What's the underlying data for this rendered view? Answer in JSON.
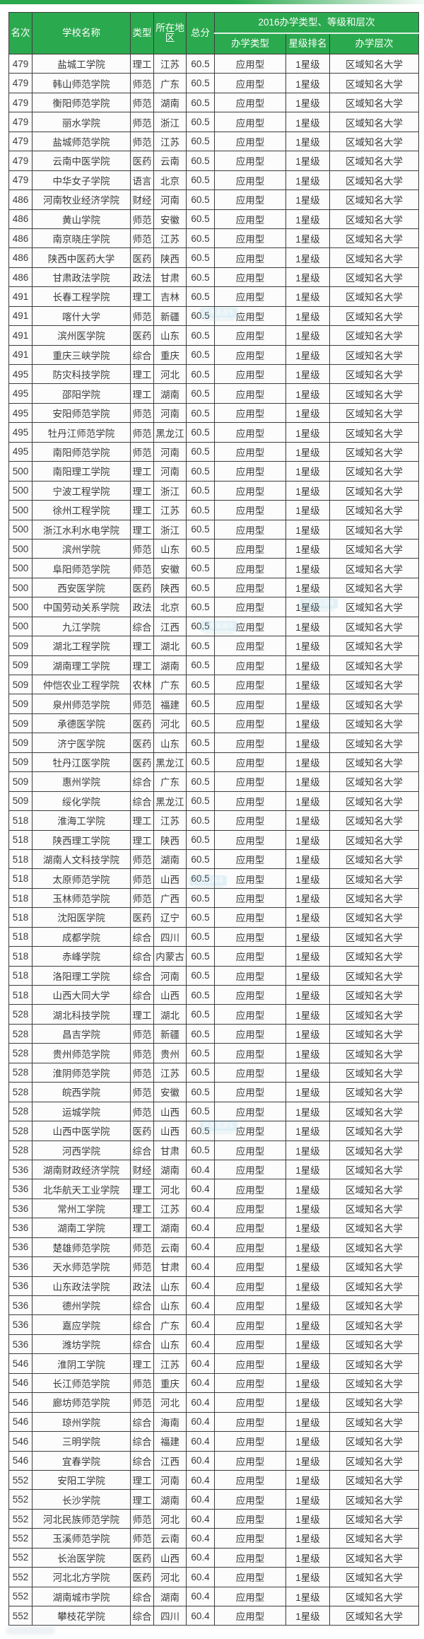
{
  "chart_data": {
    "type": "table",
    "columns": [
      "名次",
      "学校名称",
      "类型",
      "所在地区",
      "总分"
    ],
    "group_label": "2016办学类型、等级和层次",
    "sub_columns": [
      "办学类型",
      "星级排名",
      "办学层次"
    ],
    "rows": [
      [
        "479",
        "盐城工学院",
        "理工",
        "江苏",
        "60.5",
        "应用型",
        "1星级",
        "区域知名大学"
      ],
      [
        "479",
        "韩山师范学院",
        "师范",
        "广东",
        "60.5",
        "应用型",
        "1星级",
        "区域知名大学"
      ],
      [
        "479",
        "衡阳师范学院",
        "师范",
        "湖南",
        "60.5",
        "应用型",
        "1星级",
        "区域知名大学"
      ],
      [
        "479",
        "丽水学院",
        "师范",
        "浙江",
        "60.5",
        "应用型",
        "1星级",
        "区域知名大学"
      ],
      [
        "479",
        "盐城师范学院",
        "师范",
        "江苏",
        "60.5",
        "应用型",
        "1星级",
        "区域知名大学"
      ],
      [
        "479",
        "云南中医学院",
        "医药",
        "云南",
        "60.5",
        "应用型",
        "1星级",
        "区域知名大学"
      ],
      [
        "479",
        "中华女子学院",
        "语言",
        "北京",
        "60.5",
        "应用型",
        "1星级",
        "区域知名大学"
      ],
      [
        "486",
        "河南牧业经济学院",
        "财经",
        "河南",
        "60.5",
        "应用型",
        "1星级",
        "区域知名大学"
      ],
      [
        "486",
        "黄山学院",
        "师范",
        "安徽",
        "60.5",
        "应用型",
        "1星级",
        "区域知名大学"
      ],
      [
        "486",
        "南京晓庄学院",
        "师范",
        "江苏",
        "60.5",
        "应用型",
        "1星级",
        "区域知名大学"
      ],
      [
        "486",
        "陕西中医药大学",
        "医药",
        "陕西",
        "60.5",
        "应用型",
        "1星级",
        "区域知名大学"
      ],
      [
        "486",
        "甘肃政法学院",
        "政法",
        "甘肃",
        "60.5",
        "应用型",
        "1星级",
        "区域知名大学"
      ],
      [
        "491",
        "长春工程学院",
        "理工",
        "吉林",
        "60.5",
        "应用型",
        "1星级",
        "区域知名大学"
      ],
      [
        "491",
        "喀什大学",
        "师范",
        "新疆",
        "60.5",
        "应用型",
        "1星级",
        "区域知名大学"
      ],
      [
        "491",
        "滨州医学院",
        "医药",
        "山东",
        "60.5",
        "应用型",
        "1星级",
        "区域知名大学"
      ],
      [
        "491",
        "重庆三峡学院",
        "综合",
        "重庆",
        "60.5",
        "应用型",
        "1星级",
        "区域知名大学"
      ],
      [
        "495",
        "防灾科技学院",
        "理工",
        "河北",
        "60.5",
        "应用型",
        "1星级",
        "区域知名大学"
      ],
      [
        "495",
        "邵阳学院",
        "理工",
        "湖南",
        "60.5",
        "应用型",
        "1星级",
        "区域知名大学"
      ],
      [
        "495",
        "安阳师范学院",
        "师范",
        "河南",
        "60.5",
        "应用型",
        "1星级",
        "区域知名大学"
      ],
      [
        "495",
        "牡丹江师范学院",
        "师范",
        "黑龙江",
        "60.5",
        "应用型",
        "1星级",
        "区域知名大学"
      ],
      [
        "495",
        "南阳师范学院",
        "师范",
        "河南",
        "60.5",
        "应用型",
        "1星级",
        "区域知名大学"
      ],
      [
        "500",
        "南阳理工学院",
        "理工",
        "河南",
        "60.5",
        "应用型",
        "1星级",
        "区域知名大学"
      ],
      [
        "500",
        "宁波工程学院",
        "理工",
        "浙江",
        "60.5",
        "应用型",
        "1星级",
        "区域知名大学"
      ],
      [
        "500",
        "徐州工程学院",
        "理工",
        "江苏",
        "60.5",
        "应用型",
        "1星级",
        "区域知名大学"
      ],
      [
        "500",
        "浙江水利水电学院",
        "理工",
        "浙江",
        "60.5",
        "应用型",
        "1星级",
        "区域知名大学"
      ],
      [
        "500",
        "滨州学院",
        "师范",
        "山东",
        "60.5",
        "应用型",
        "1星级",
        "区域知名大学"
      ],
      [
        "500",
        "阜阳师范学院",
        "师范",
        "安徽",
        "60.5",
        "应用型",
        "1星级",
        "区域知名大学"
      ],
      [
        "500",
        "西安医学院",
        "医药",
        "陕西",
        "60.5",
        "应用型",
        "1星级",
        "区域知名大学"
      ],
      [
        "500",
        "中国劳动关系学院",
        "政法",
        "北京",
        "60.5",
        "应用型",
        "1星级",
        "区域知名大学"
      ],
      [
        "500",
        "九江学院",
        "综合",
        "江西",
        "60.5",
        "应用型",
        "1星级",
        "区域知名大学"
      ],
      [
        "509",
        "湖北工程学院",
        "理工",
        "湖北",
        "60.5",
        "应用型",
        "1星级",
        "区域知名大学"
      ],
      [
        "509",
        "湖南理工学院",
        "理工",
        "湖南",
        "60.5",
        "应用型",
        "1星级",
        "区域知名大学"
      ],
      [
        "509",
        "仲恺农业工程学院",
        "农林",
        "广东",
        "60.5",
        "应用型",
        "1星级",
        "区域知名大学"
      ],
      [
        "509",
        "泉州师范学院",
        "师范",
        "福建",
        "60.5",
        "应用型",
        "1星级",
        "区域知名大学"
      ],
      [
        "509",
        "承德医学院",
        "医药",
        "河北",
        "60.5",
        "应用型",
        "1星级",
        "区域知名大学"
      ],
      [
        "509",
        "济宁医学院",
        "医药",
        "山东",
        "60.5",
        "应用型",
        "1星级",
        "区域知名大学"
      ],
      [
        "509",
        "牡丹江医学院",
        "医药",
        "黑龙江",
        "60.5",
        "应用型",
        "1星级",
        "区域知名大学"
      ],
      [
        "509",
        "惠州学院",
        "综合",
        "广东",
        "60.5",
        "应用型",
        "1星级",
        "区域知名大学"
      ],
      [
        "509",
        "绥化学院",
        "综合",
        "黑龙江",
        "60.5",
        "应用型",
        "1星级",
        "区域知名大学"
      ],
      [
        "518",
        "淮海工学院",
        "理工",
        "江苏",
        "60.5",
        "应用型",
        "1星级",
        "区域知名大学"
      ],
      [
        "518",
        "陕西理工学院",
        "理工",
        "陕西",
        "60.5",
        "应用型",
        "1星级",
        "区域知名大学"
      ],
      [
        "518",
        "湖南人文科技学院",
        "师范",
        "湖南",
        "60.5",
        "应用型",
        "1星级",
        "区域知名大学"
      ],
      [
        "518",
        "太原师范学院",
        "师范",
        "山西",
        "60.5",
        "应用型",
        "1星级",
        "区域知名大学"
      ],
      [
        "518",
        "玉林师范学院",
        "师范",
        "广西",
        "60.5",
        "应用型",
        "1星级",
        "区域知名大学"
      ],
      [
        "518",
        "沈阳医学院",
        "医药",
        "辽宁",
        "60.5",
        "应用型",
        "1星级",
        "区域知名大学"
      ],
      [
        "518",
        "成都学院",
        "综合",
        "四川",
        "60.5",
        "应用型",
        "1星级",
        "区域知名大学"
      ],
      [
        "518",
        "赤峰学院",
        "综合",
        "内蒙古",
        "60.5",
        "应用型",
        "1星级",
        "区域知名大学"
      ],
      [
        "518",
        "洛阳理工学院",
        "综合",
        "河南",
        "60.5",
        "应用型",
        "1星级",
        "区域知名大学"
      ],
      [
        "518",
        "山西大同大学",
        "综合",
        "山西",
        "60.5",
        "应用型",
        "1星级",
        "区域知名大学"
      ],
      [
        "528",
        "湖北科技学院",
        "理工",
        "湖北",
        "60.5",
        "应用型",
        "1星级",
        "区域知名大学"
      ],
      [
        "528",
        "昌吉学院",
        "师范",
        "新疆",
        "60.5",
        "应用型",
        "1星级",
        "区域知名大学"
      ],
      [
        "528",
        "贵州师范学院",
        "师范",
        "贵州",
        "60.5",
        "应用型",
        "1星级",
        "区域知名大学"
      ],
      [
        "528",
        "淮阴师范学院",
        "师范",
        "江苏",
        "60.5",
        "应用型",
        "1星级",
        "区域知名大学"
      ],
      [
        "528",
        "皖西学院",
        "师范",
        "安徽",
        "60.5",
        "应用型",
        "1星级",
        "区域知名大学"
      ],
      [
        "528",
        "运城学院",
        "师范",
        "山西",
        "60.5",
        "应用型",
        "1星级",
        "区域知名大学"
      ],
      [
        "528",
        "山西中医学院",
        "医药",
        "山西",
        "60.5",
        "应用型",
        "1星级",
        "区域知名大学"
      ],
      [
        "528",
        "河西学院",
        "综合",
        "甘肃",
        "60.5",
        "应用型",
        "1星级",
        "区域知名大学"
      ],
      [
        "536",
        "湖南财政经济学院",
        "财经",
        "湖南",
        "60.4",
        "应用型",
        "1星级",
        "区域知名大学"
      ],
      [
        "536",
        "北华航天工业学院",
        "理工",
        "河北",
        "60.4",
        "应用型",
        "1星级",
        "区域知名大学"
      ],
      [
        "536",
        "常州工学院",
        "理工",
        "江苏",
        "60.4",
        "应用型",
        "1星级",
        "区域知名大学"
      ],
      [
        "536",
        "湖南工学院",
        "理工",
        "湖南",
        "60.4",
        "应用型",
        "1星级",
        "区域知名大学"
      ],
      [
        "536",
        "楚雄师范学院",
        "师范",
        "云南",
        "60.4",
        "应用型",
        "1星级",
        "区域知名大学"
      ],
      [
        "536",
        "天水师范学院",
        "师范",
        "甘肃",
        "60.4",
        "应用型",
        "1星级",
        "区域知名大学"
      ],
      [
        "536",
        "山东政法学院",
        "政法",
        "山东",
        "60.4",
        "应用型",
        "1星级",
        "区域知名大学"
      ],
      [
        "536",
        "德州学院",
        "综合",
        "山东",
        "60.4",
        "应用型",
        "1星级",
        "区域知名大学"
      ],
      [
        "536",
        "嘉应学院",
        "综合",
        "广东",
        "60.4",
        "应用型",
        "1星级",
        "区域知名大学"
      ],
      [
        "536",
        "潍坊学院",
        "综合",
        "山东",
        "60.4",
        "应用型",
        "1星级",
        "区域知名大学"
      ],
      [
        "546",
        "淮阴工学院",
        "理工",
        "江苏",
        "60.4",
        "应用型",
        "1星级",
        "区域知名大学"
      ],
      [
        "546",
        "长江师范学院",
        "师范",
        "重庆",
        "60.4",
        "应用型",
        "1星级",
        "区域知名大学"
      ],
      [
        "546",
        "廊坊师范学院",
        "师范",
        "河北",
        "60.4",
        "应用型",
        "1星级",
        "区域知名大学"
      ],
      [
        "546",
        "琼州学院",
        "综合",
        "海南",
        "60.4",
        "应用型",
        "1星级",
        "区域知名大学"
      ],
      [
        "546",
        "三明学院",
        "综合",
        "福建",
        "60.4",
        "应用型",
        "1星级",
        "区域知名大学"
      ],
      [
        "546",
        "宜春学院",
        "综合",
        "江西",
        "60.4",
        "应用型",
        "1星级",
        "区域知名大学"
      ],
      [
        "552",
        "安阳工学院",
        "理工",
        "河南",
        "60.4",
        "应用型",
        "1星级",
        "区域知名大学"
      ],
      [
        "552",
        "长沙学院",
        "理工",
        "湖南",
        "60.4",
        "应用型",
        "1星级",
        "区域知名大学"
      ],
      [
        "552",
        "河北民族师范学院",
        "师范",
        "河北",
        "60.4",
        "应用型",
        "1星级",
        "区域知名大学"
      ],
      [
        "552",
        "玉溪师范学院",
        "师范",
        "云南",
        "60.4",
        "应用型",
        "1星级",
        "区域知名大学"
      ],
      [
        "552",
        "长治医学院",
        "医药",
        "山西",
        "60.4",
        "应用型",
        "1星级",
        "区域知名大学"
      ],
      [
        "552",
        "河北北方学院",
        "医药",
        "河北",
        "60.4",
        "应用型",
        "1星级",
        "区域知名大学"
      ],
      [
        "552",
        "湖南城市学院",
        "综合",
        "湖南",
        "60.4",
        "应用型",
        "1星级",
        "区域知名大学"
      ],
      [
        "552",
        "攀枝花学院",
        "综合",
        "四川",
        "60.4",
        "应用型",
        "1星级",
        "区域知名大学"
      ]
    ]
  },
  "watermark": {
    "text": "高考直通车"
  },
  "colors": {
    "header_bg": "#2ba94e",
    "header_text": "#ffffff",
    "border": "#3c3c3c",
    "row_bg": "#fcfcfc",
    "body_text": "#3a3a3a",
    "watermark_blue": "#58b7d6"
  }
}
